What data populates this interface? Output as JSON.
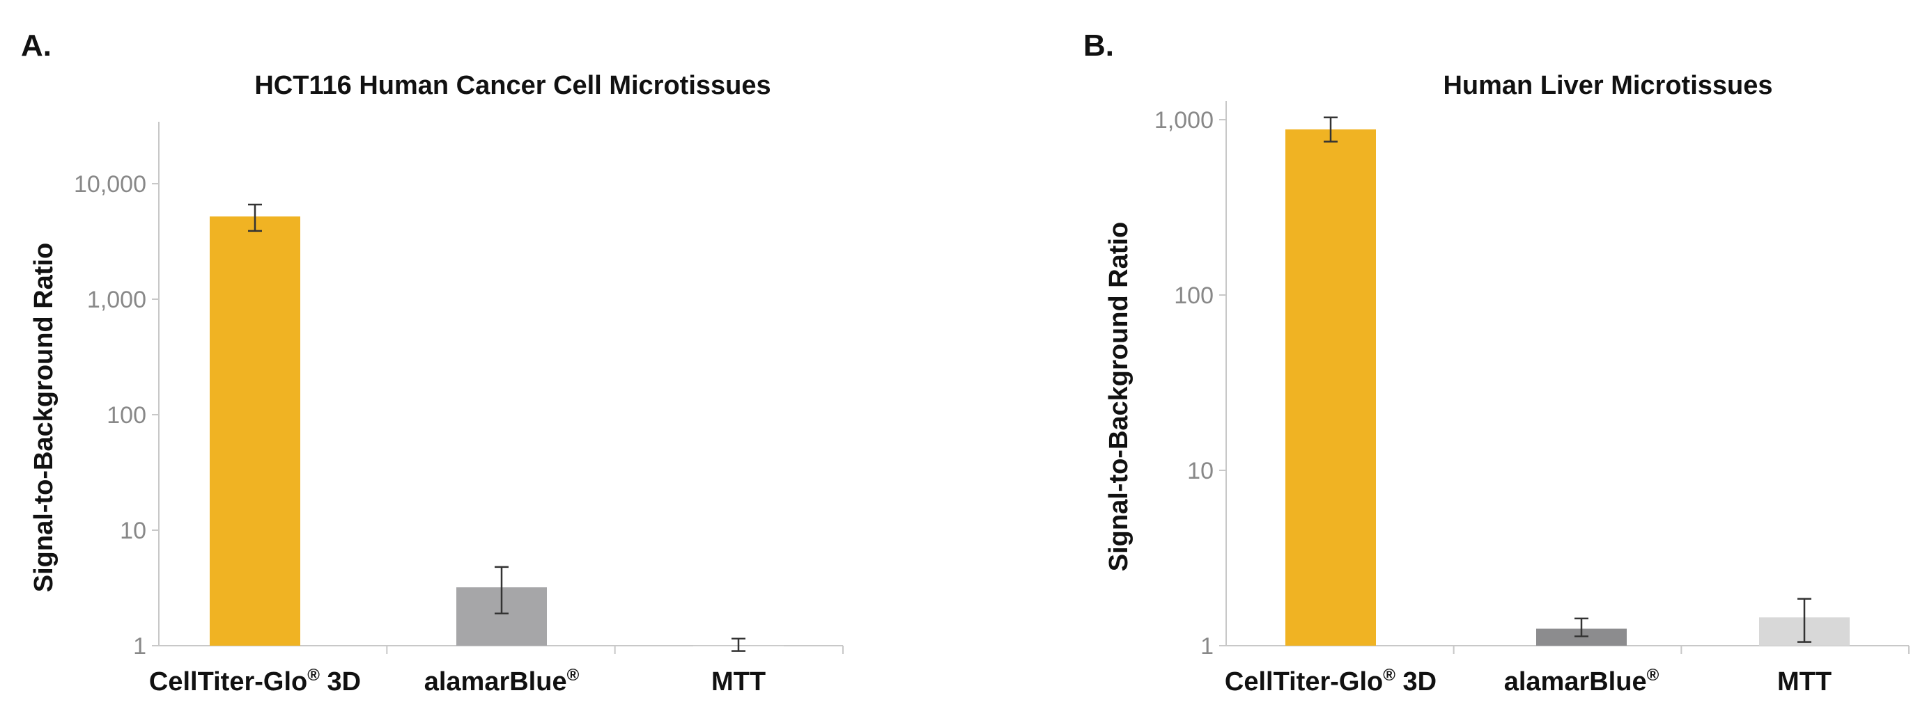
{
  "panels": [
    {
      "letter": "A."
    },
    {
      "letter": "B."
    }
  ],
  "chart_data": [
    {
      "type": "bar",
      "title": "HCT116 Human Cancer Cell Microtissues",
      "ylabel": "Signal-to-Background Ratio",
      "yscale": "log",
      "ylim": [
        1,
        40000
      ],
      "yticks": [
        1,
        10,
        100,
        1000,
        10000
      ],
      "ytick_labels": [
        "1",
        "10",
        "100",
        "1,000",
        "10,000"
      ],
      "categories": [
        {
          "name": "CellTiter-Glo",
          "sup": "®",
          "suffix": " 3D"
        },
        {
          "name": "alamarBlue",
          "sup": "®",
          "suffix": ""
        },
        {
          "name": "MTT",
          "sup": "",
          "suffix": ""
        }
      ],
      "values": [
        5200,
        3.2,
        1.0
      ],
      "error_low": [
        3900,
        1.9,
        0.9
      ],
      "error_high": [
        6600,
        4.8,
        1.15
      ],
      "colors": [
        "#f0b323",
        "#a6a6a8",
        "#d6d6d6"
      ],
      "legend": "none",
      "grid": false
    },
    {
      "type": "bar",
      "title": "Human Liver Microtissues",
      "ylabel": "Signal-to-Background Ratio",
      "yscale": "log",
      "ylim": [
        1,
        1500
      ],
      "yticks": [
        1,
        10,
        100,
        1000
      ],
      "ytick_labels": [
        "1",
        "10",
        "100",
        "1,000"
      ],
      "categories": [
        {
          "name": "CellTiter-Glo",
          "sup": "®",
          "suffix": " 3D"
        },
        {
          "name": "alamarBlue",
          "sup": "®",
          "suffix": ""
        },
        {
          "name": "MTT",
          "sup": "",
          "suffix": ""
        }
      ],
      "values": [
        880,
        1.25,
        1.45
      ],
      "error_low": [
        750,
        1.13,
        1.05
      ],
      "error_high": [
        1030,
        1.43,
        1.85
      ],
      "colors": [
        "#f0b323",
        "#8c8c8e",
        "#d8d8d8"
      ],
      "legend": "none",
      "grid": false
    }
  ]
}
